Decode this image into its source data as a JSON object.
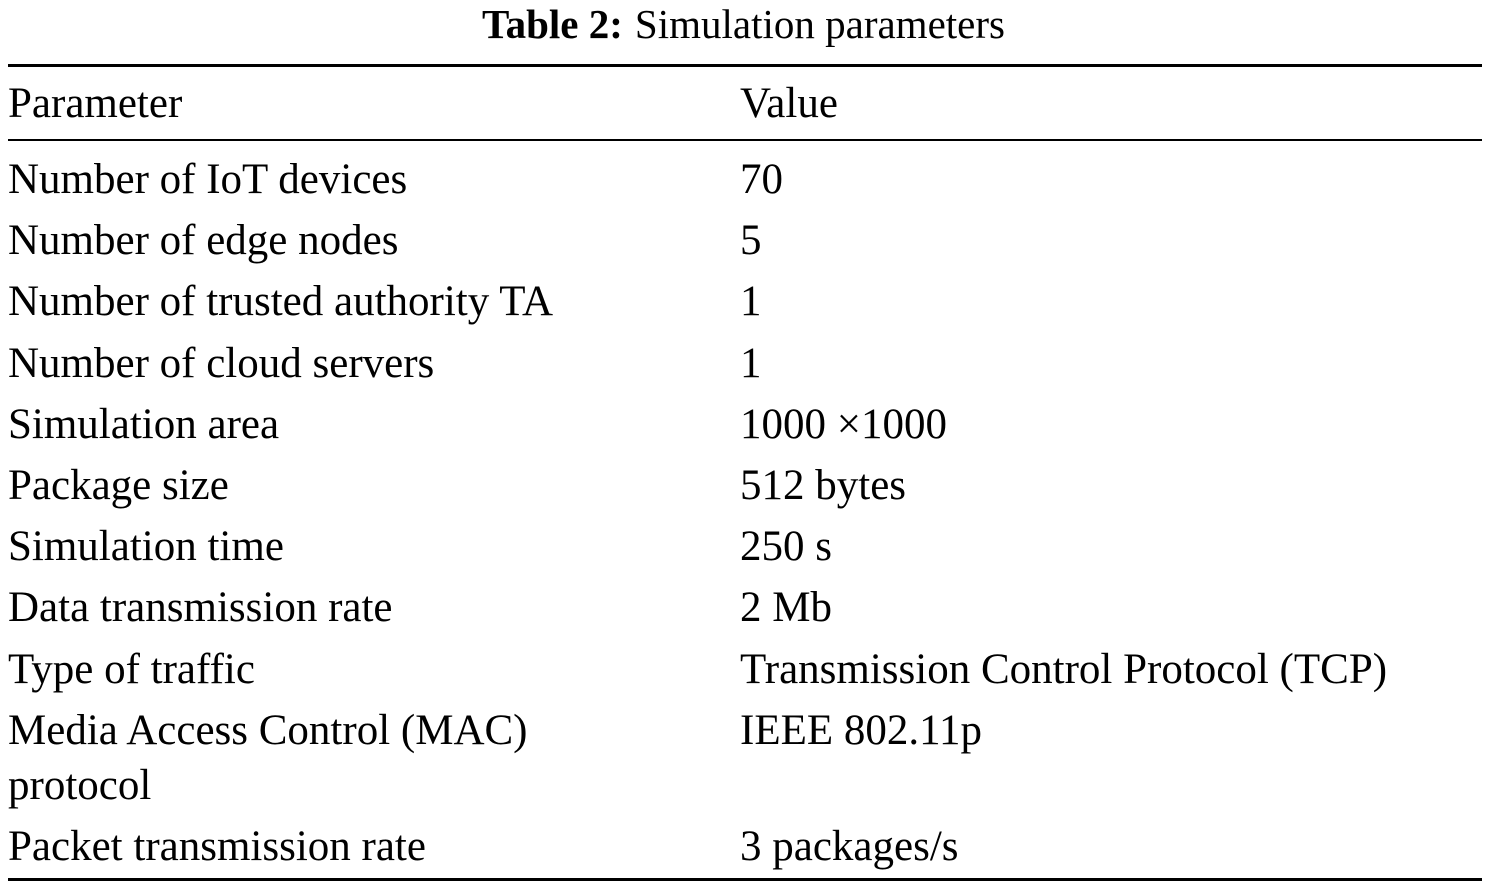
{
  "caption": {
    "label": "Table 2:",
    "title": "Simulation parameters"
  },
  "table": {
    "columns": [
      "Parameter",
      "Value"
    ],
    "rows": [
      {
        "parameter": "Number of IoT devices",
        "value": "70"
      },
      {
        "parameter": "Number of edge nodes",
        "value": "5"
      },
      {
        "parameter": "Number of trusted authority TA",
        "value": "1"
      },
      {
        "parameter": "Number of cloud servers",
        "value": "1"
      },
      {
        "parameter": "Simulation area",
        "value": "1000 ×1000"
      },
      {
        "parameter": "Package size",
        "value": "512 bytes"
      },
      {
        "parameter": "Simulation time",
        "value": "250 s"
      },
      {
        "parameter": "Data transmission rate",
        "value": "2 Mb"
      },
      {
        "parameter": "Type of traffic",
        "value": "Transmission Control Protocol (TCP)"
      },
      {
        "parameter": "Media Access Control (MAC) protocol",
        "value": "IEEE 802.11p"
      },
      {
        "parameter": "Packet transmission rate",
        "value": "3 packages/s"
      }
    ]
  }
}
